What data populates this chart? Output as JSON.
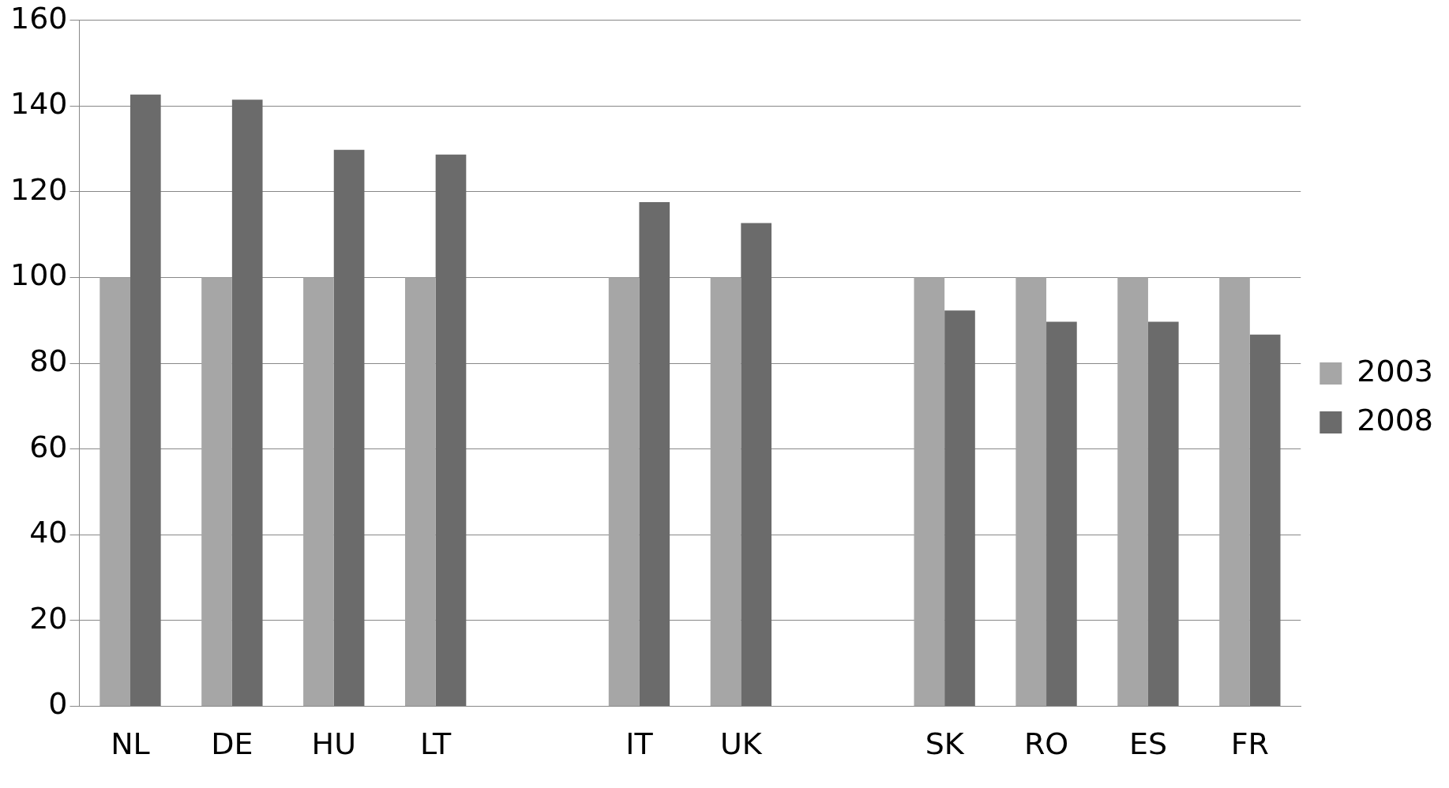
{
  "chart_data": {
    "type": "bar",
    "categories": [
      "NL",
      "DE",
      "HU",
      "LT",
      null,
      "IT",
      "UK",
      null,
      "SK",
      "RO",
      "ES",
      "FR"
    ],
    "series": [
      {
        "name": "2003",
        "color": "#a6a6a6",
        "values": [
          100,
          100,
          100,
          100,
          null,
          100,
          100,
          null,
          100,
          100,
          100,
          100
        ]
      },
      {
        "name": "2008",
        "color": "#6b6b6b",
        "values": [
          142.7,
          141.5,
          129.8,
          128.7,
          null,
          117.6,
          112.7,
          null,
          92.3,
          89.7,
          89.7,
          86.7
        ]
      }
    ],
    "ylim": [
      0,
      160
    ],
    "yticks": [
      0,
      20,
      40,
      60,
      80,
      100,
      120,
      140,
      160
    ],
    "grid": "y",
    "legend": "right"
  }
}
